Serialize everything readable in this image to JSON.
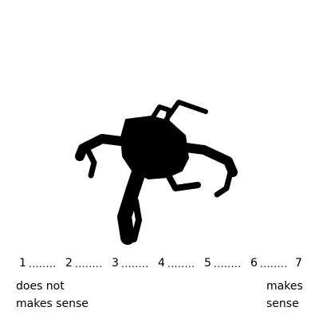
{
  "figure": {
    "icon": "spider-robot-silhouette-icon",
    "fill": "#000000"
  },
  "scale": {
    "points": [
      "1",
      "2",
      "3",
      "4",
      "5",
      "6",
      "7"
    ],
    "separator": "........"
  },
  "anchors": {
    "left": [
      "does not",
      "makes sense"
    ],
    "right": [
      "makes",
      "sense"
    ]
  }
}
